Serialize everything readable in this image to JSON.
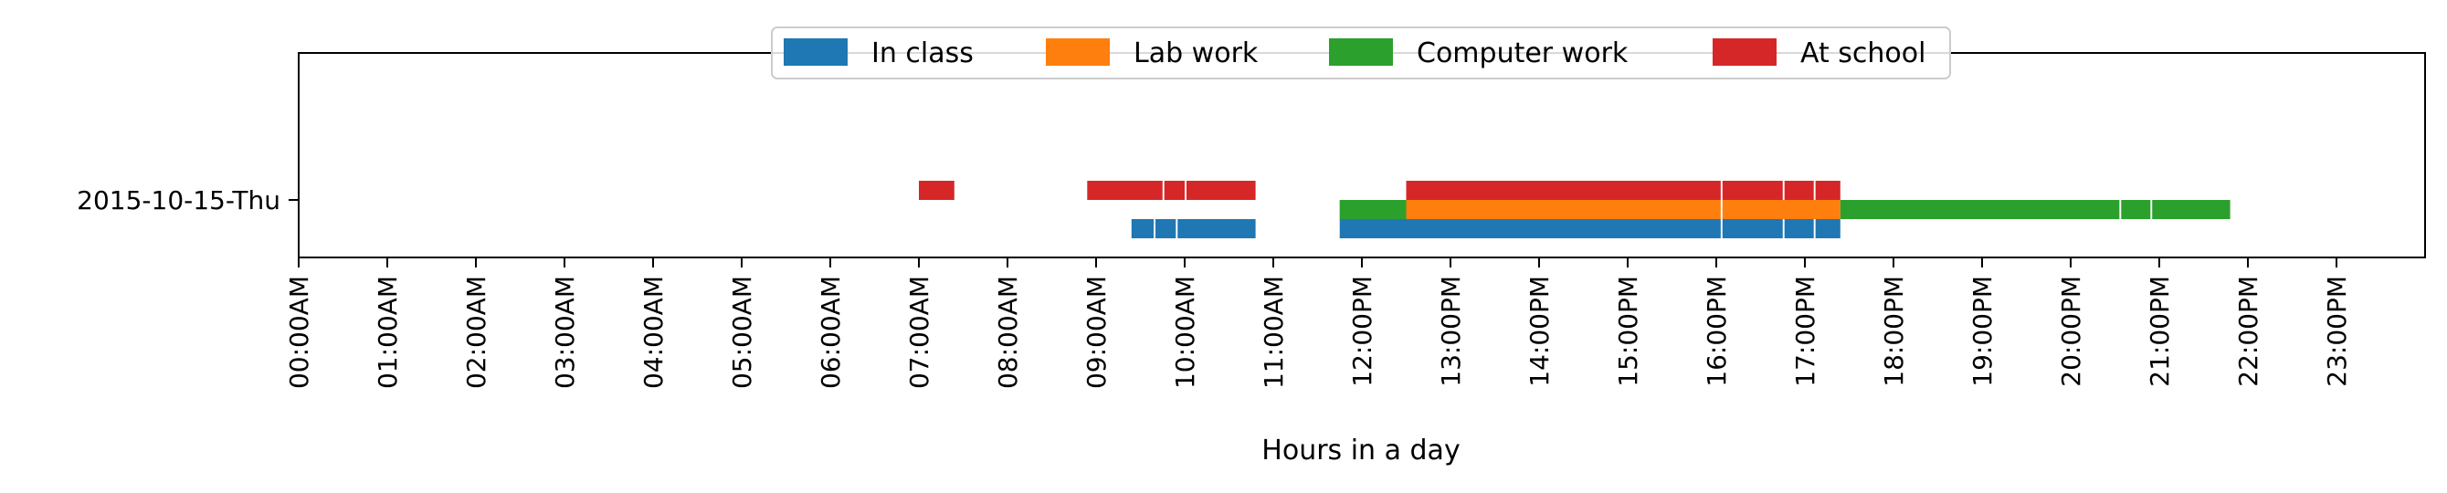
{
  "chart_data": {
    "type": "timeline",
    "xlabel": "Hours in a day",
    "xlim": [
      0,
      24
    ],
    "x_tick_labels": [
      "00:00AM",
      "01:00AM",
      "02:00AM",
      "03:00AM",
      "04:00AM",
      "05:00AM",
      "06:00AM",
      "07:00AM",
      "08:00AM",
      "09:00AM",
      "10:00AM",
      "11:00AM",
      "12:00PM",
      "13:00PM",
      "14:00PM",
      "15:00PM",
      "16:00PM",
      "17:00PM",
      "18:00PM",
      "19:00PM",
      "20:00PM",
      "21:00PM",
      "22:00PM",
      "23:00PM"
    ],
    "y_categories": [
      "2015-10-15-Thu"
    ],
    "legend_position": "top-center",
    "series": [
      {
        "name": "In class",
        "color": "#1f77b4",
        "intervals": [
          [
            9.4,
            9.65
          ],
          [
            9.67,
            9.9
          ],
          [
            9.92,
            10.8
          ],
          [
            11.75,
            16.05
          ],
          [
            16.07,
            16.75
          ],
          [
            16.77,
            17.1
          ],
          [
            17.12,
            17.4
          ]
        ]
      },
      {
        "name": "Lab work",
        "color": "#ff7f0e",
        "intervals": [
          [
            11.75,
            16.05
          ],
          [
            16.07,
            17.4
          ]
        ]
      },
      {
        "name": "Computer work",
        "color": "#2ca02c",
        "intervals": [
          [
            11.75,
            12.5
          ],
          [
            17.4,
            20.55
          ],
          [
            20.57,
            20.9
          ],
          [
            20.92,
            21.8
          ]
        ]
      },
      {
        "name": "At school",
        "color": "#d62728",
        "intervals": [
          [
            7.0,
            7.4
          ],
          [
            8.9,
            9.75
          ],
          [
            9.77,
            10.0
          ],
          [
            10.02,
            10.8
          ],
          [
            12.5,
            16.05
          ],
          [
            16.07,
            16.75
          ],
          [
            16.77,
            17.1
          ],
          [
            17.12,
            17.4
          ]
        ]
      }
    ]
  }
}
